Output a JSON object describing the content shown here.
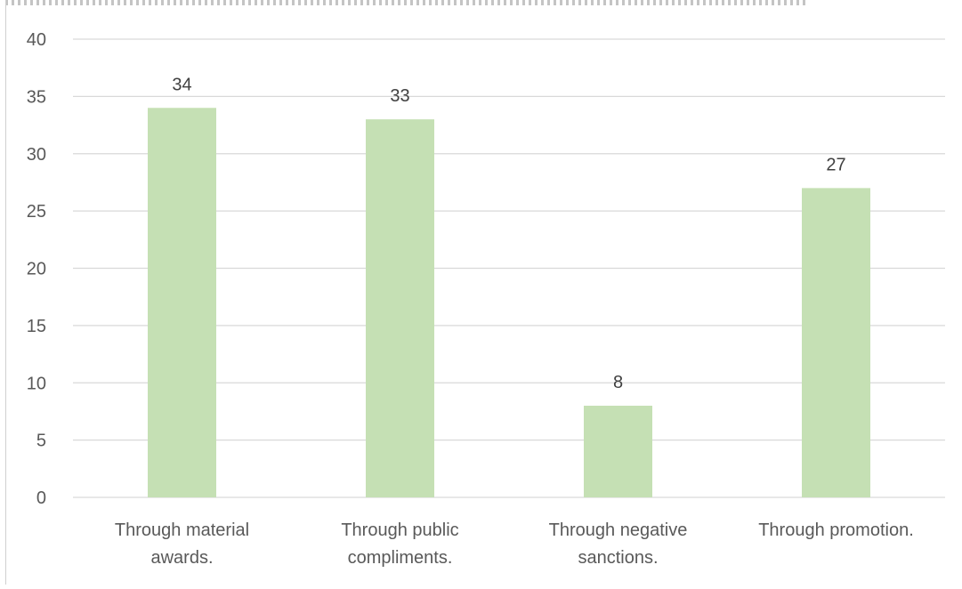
{
  "chart_data": {
    "type": "bar",
    "title": "",
    "xlabel": "",
    "ylabel": "",
    "categories": [
      [
        "Through material",
        "awards."
      ],
      [
        "Through public",
        "compliments."
      ],
      [
        "Through negative",
        "sanctions."
      ],
      [
        "Through promotion."
      ]
    ],
    "values": [
      34,
      33,
      8,
      27
    ],
    "data_labels": [
      "34",
      "33",
      "8",
      "27"
    ],
    "ylim": [
      0,
      40
    ],
    "yticks": [
      0,
      5,
      10,
      15,
      20,
      25,
      30,
      35,
      40
    ],
    "grid": true,
    "legend": "none",
    "bar_color": "#c5e0b4",
    "grid_color": "#d9d9d9",
    "text_color": "#595959",
    "label_color": "#404040"
  }
}
